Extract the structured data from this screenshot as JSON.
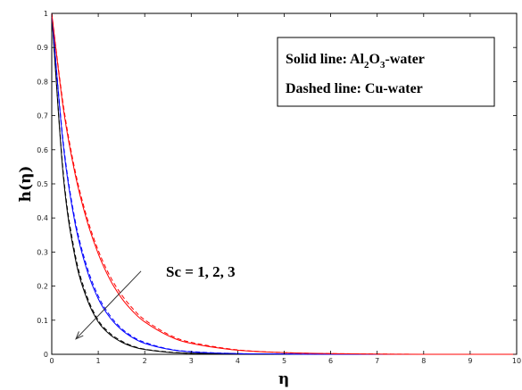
{
  "chart_data": {
    "type": "line",
    "xlabel": "η",
    "ylabel": "h(η)",
    "xlim": [
      0,
      10
    ],
    "ylim": [
      0,
      1
    ],
    "xticks": [
      0,
      1,
      2,
      3,
      4,
      5,
      6,
      7,
      8,
      9,
      10
    ],
    "yticks": [
      0,
      0.1,
      0.2,
      0.3,
      0.4,
      0.5,
      0.6,
      0.7,
      0.8,
      0.9,
      1
    ],
    "grid": false,
    "legend": {
      "placement": "top-right",
      "solid": {
        "prefix": "Solid line: Al",
        "sub1": "2",
        "mid": "O",
        "sub2": "3",
        "suffix": "-water"
      },
      "dashed": "Dashed line: Cu-water"
    },
    "annotation": {
      "text": "Sc = 1, 2, 3",
      "arrow_from": [
        1.92,
        0.244
      ],
      "arrow_to": [
        0.52,
        0.045
      ]
    },
    "colors": {
      "sc1": "#000000",
      "sc2": "#0000ff",
      "sc3": "#ff0000"
    },
    "series": [
      {
        "style": "solid",
        "color": "#000000",
        "x": [
          0,
          0.25,
          0.5,
          0.75,
          1,
          1.25,
          1.5,
          1.75,
          2,
          2.5,
          3,
          4,
          5,
          6,
          8,
          10
        ],
        "y": [
          1,
          0.52,
          0.285,
          0.165,
          0.095,
          0.058,
          0.036,
          0.022,
          0.014,
          0.006,
          0.003,
          0.001,
          0,
          0,
          0,
          0
        ]
      },
      {
        "style": "dashed",
        "color": "#000000",
        "x": [
          0,
          0.25,
          0.5,
          0.75,
          1,
          1.25,
          1.5,
          1.75,
          2,
          2.5,
          3,
          4,
          5,
          6,
          8,
          10
        ],
        "y": [
          1,
          0.53,
          0.295,
          0.173,
          0.1,
          0.062,
          0.039,
          0.024,
          0.015,
          0.007,
          0.003,
          0.001,
          0,
          0,
          0,
          0
        ]
      },
      {
        "style": "solid",
        "color": "#0000ff",
        "x": [
          0,
          0.25,
          0.5,
          0.75,
          1,
          1.25,
          1.5,
          1.75,
          2,
          2.5,
          3,
          4,
          5,
          6,
          8,
          10
        ],
        "y": [
          1,
          0.61,
          0.385,
          0.25,
          0.163,
          0.108,
          0.072,
          0.048,
          0.032,
          0.015,
          0.007,
          0.002,
          0.001,
          0,
          0,
          0
        ]
      },
      {
        "style": "dashed",
        "color": "#0000ff",
        "x": [
          0,
          0.25,
          0.5,
          0.75,
          1,
          1.25,
          1.5,
          1.75,
          2,
          2.5,
          3,
          4,
          5,
          6,
          8,
          10
        ],
        "y": [
          1,
          0.62,
          0.395,
          0.26,
          0.171,
          0.114,
          0.076,
          0.051,
          0.035,
          0.016,
          0.008,
          0.002,
          0.001,
          0,
          0,
          0
        ]
      },
      {
        "style": "solid",
        "color": "#ff0000",
        "x": [
          0,
          0.25,
          0.5,
          0.75,
          1,
          1.25,
          1.5,
          1.75,
          2,
          2.5,
          3,
          4,
          5,
          6,
          8,
          10
        ],
        "y": [
          1,
          0.72,
          0.53,
          0.395,
          0.295,
          0.22,
          0.165,
          0.125,
          0.095,
          0.055,
          0.032,
          0.012,
          0.005,
          0.002,
          0,
          0
        ]
      },
      {
        "style": "dashed",
        "color": "#ff0000",
        "x": [
          0,
          0.25,
          0.5,
          0.75,
          1,
          1.25,
          1.5,
          1.75,
          2,
          2.5,
          3,
          4,
          5,
          6,
          8,
          10
        ],
        "y": [
          1,
          0.73,
          0.54,
          0.405,
          0.305,
          0.23,
          0.175,
          0.133,
          0.101,
          0.059,
          0.035,
          0.013,
          0.005,
          0.002,
          0,
          0
        ]
      }
    ]
  }
}
